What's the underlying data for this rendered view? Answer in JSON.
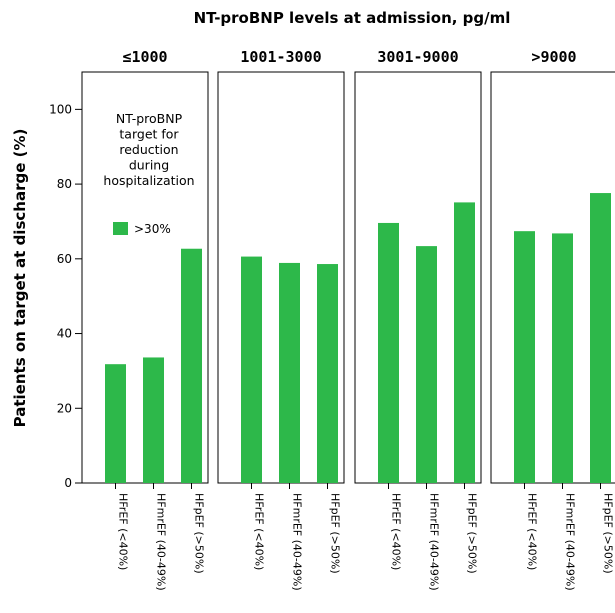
{
  "chart_data": {
    "type": "bar",
    "title": "NT-proBNP levels at admission, pg/ml",
    "ylabel": "Patients on target at discharge (%)",
    "ylim": [
      0,
      110
    ],
    "yticks": [
      0,
      20,
      40,
      60,
      80,
      100
    ],
    "categories": [
      "HFrEF (<40%)",
      "HFmrEF (40-49%)",
      "HFpEF (>50%)"
    ],
    "bar_color": "#2db84a",
    "legend": {
      "title_lines": [
        "NT-proBNP",
        "target for",
        "reduction",
        "during",
        "hospitalization"
      ],
      "placement": "top-left",
      "entries": [
        {
          "label": ">30%",
          "color": "#2db84a"
        }
      ]
    },
    "panels": [
      {
        "label": "≤1000",
        "values": [
          31.8,
          33.6,
          62.7
        ]
      },
      {
        "label": "1001-3000",
        "values": [
          60.6,
          58.9,
          58.6
        ]
      },
      {
        "label": "3001-9000",
        "values": [
          69.6,
          63.4,
          75.1
        ]
      },
      {
        "label": ">9000",
        "values": [
          67.4,
          66.8,
          77.6
        ]
      }
    ]
  }
}
